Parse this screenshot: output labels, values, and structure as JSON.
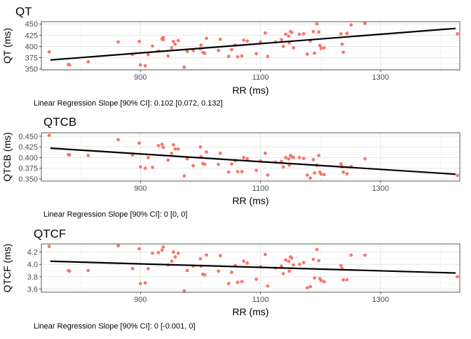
{
  "chart_data": [
    {
      "type": "scatter",
      "title": "QT",
      "xlabel": "RR (ms)",
      "ylabel": "QT (ms)",
      "xlim": [
        735,
        1432
      ],
      "ylim": [
        348,
        455
      ],
      "xticks": [
        900,
        1100,
        1300
      ],
      "yticks": [
        350,
        375,
        400,
        425,
        450
      ],
      "ytick_labels": [
        "350",
        "375",
        "400",
        "425",
        "450"
      ],
      "grid": true,
      "point_color": "#F8766D",
      "line_color": "#000000",
      "caption": "Linear Regression Slope [90% CI]: 0.102 [0.072, 0.132]",
      "regression": {
        "x": [
          750,
          1425
        ],
        "y": [
          370,
          440
        ]
      },
      "points": [
        {
          "x": 748,
          "y": 388
        },
        {
          "x": 780,
          "y": 360
        },
        {
          "x": 782,
          "y": 359
        },
        {
          "x": 813,
          "y": 366
        },
        {
          "x": 863,
          "y": 410
        },
        {
          "x": 887,
          "y": 382
        },
        {
          "x": 898,
          "y": 411
        },
        {
          "x": 900,
          "y": 359
        },
        {
          "x": 908,
          "y": 357
        },
        {
          "x": 913,
          "y": 382
        },
        {
          "x": 920,
          "y": 401
        },
        {
          "x": 930,
          "y": 390
        },
        {
          "x": 936,
          "y": 417
        },
        {
          "x": 938,
          "y": 415
        },
        {
          "x": 938,
          "y": 420
        },
        {
          "x": 946,
          "y": 379
        },
        {
          "x": 952,
          "y": 397
        },
        {
          "x": 955,
          "y": 411
        },
        {
          "x": 958,
          "y": 405
        },
        {
          "x": 963,
          "y": 413
        },
        {
          "x": 973,
          "y": 354
        },
        {
          "x": 978,
          "y": 389
        },
        {
          "x": 988,
          "y": 391
        },
        {
          "x": 1000,
          "y": 395
        },
        {
          "x": 1001,
          "y": 403
        },
        {
          "x": 1004,
          "y": 387
        },
        {
          "x": 1007,
          "y": 385
        },
        {
          "x": 1010,
          "y": 418
        },
        {
          "x": 1030,
          "y": 391
        },
        {
          "x": 1033,
          "y": 416
        },
        {
          "x": 1047,
          "y": 378
        },
        {
          "x": 1052,
          "y": 393
        },
        {
          "x": 1058,
          "y": 403
        },
        {
          "x": 1062,
          "y": 377
        },
        {
          "x": 1069,
          "y": 379
        },
        {
          "x": 1072,
          "y": 414
        },
        {
          "x": 1078,
          "y": 412
        },
        {
          "x": 1093,
          "y": 384
        },
        {
          "x": 1100,
          "y": 410
        },
        {
          "x": 1108,
          "y": 430
        },
        {
          "x": 1112,
          "y": 378
        },
        {
          "x": 1125,
          "y": 410
        },
        {
          "x": 1135,
          "y": 415
        },
        {
          "x": 1138,
          "y": 400
        },
        {
          "x": 1142,
          "y": 427
        },
        {
          "x": 1147,
          "y": 423
        },
        {
          "x": 1148,
          "y": 408
        },
        {
          "x": 1150,
          "y": 433
        },
        {
          "x": 1152,
          "y": 431
        },
        {
          "x": 1155,
          "y": 397
        },
        {
          "x": 1165,
          "y": 427
        },
        {
          "x": 1172,
          "y": 428
        },
        {
          "x": 1178,
          "y": 383
        },
        {
          "x": 1183,
          "y": 412
        },
        {
          "x": 1188,
          "y": 433
        },
        {
          "x": 1190,
          "y": 385
        },
        {
          "x": 1194,
          "y": 450
        },
        {
          "x": 1197,
          "y": 432
        },
        {
          "x": 1199,
          "y": 402
        },
        {
          "x": 1201,
          "y": 396
        },
        {
          "x": 1206,
          "y": 397
        },
        {
          "x": 1234,
          "y": 428
        },
        {
          "x": 1236,
          "y": 405
        },
        {
          "x": 1238,
          "y": 387
        },
        {
          "x": 1244,
          "y": 429
        },
        {
          "x": 1251,
          "y": 448
        },
        {
          "x": 1274,
          "y": 451
        },
        {
          "x": 1428,
          "y": 428
        }
      ]
    },
    {
      "type": "scatter",
      "title": "QTCB",
      "xlabel": "RR (ms)",
      "ylabel": "QTCB (ms)",
      "xlim": [
        735,
        1432
      ],
      "ylim": [
        0.345,
        0.458
      ],
      "xticks": [
        900,
        1100,
        1300
      ],
      "yticks": [
        0.35,
        0.375,
        0.4,
        0.425,
        0.45
      ],
      "ytick_labels": [
        "0.350",
        "0.375",
        "0.400",
        "0.425",
        "0.450"
      ],
      "grid": true,
      "point_color": "#F8766D",
      "line_color": "#000000",
      "caption": "Linear Regression Slope [90% CI]: 0 [0, 0]",
      "regression": {
        "x": [
          750,
          1425
        ],
        "y": [
          0.422,
          0.361
        ]
      },
      "points": [
        {
          "x": 748,
          "y": 0.452
        },
        {
          "x": 780,
          "y": 0.407
        },
        {
          "x": 782,
          "y": 0.406
        },
        {
          "x": 813,
          "y": 0.405
        },
        {
          "x": 863,
          "y": 0.442
        },
        {
          "x": 887,
          "y": 0.406
        },
        {
          "x": 898,
          "y": 0.434
        },
        {
          "x": 900,
          "y": 0.378
        },
        {
          "x": 908,
          "y": 0.375
        },
        {
          "x": 913,
          "y": 0.4
        },
        {
          "x": 920,
          "y": 0.377
        },
        {
          "x": 930,
          "y": 0.428
        },
        {
          "x": 936,
          "y": 0.431
        },
        {
          "x": 938,
          "y": 0.424
        },
        {
          "x": 946,
          "y": 0.394
        },
        {
          "x": 952,
          "y": 0.41
        },
        {
          "x": 955,
          "y": 0.43
        },
        {
          "x": 958,
          "y": 0.42
        },
        {
          "x": 963,
          "y": 0.42
        },
        {
          "x": 978,
          "y": 0.397
        },
        {
          "x": 973,
          "y": 0.357
        },
        {
          "x": 988,
          "y": 0.381
        },
        {
          "x": 1000,
          "y": 0.425
        },
        {
          "x": 1001,
          "y": 0.402
        },
        {
          "x": 1004,
          "y": 0.386
        },
        {
          "x": 1007,
          "y": 0.384
        },
        {
          "x": 1010,
          "y": 0.413
        },
        {
          "x": 1030,
          "y": 0.384
        },
        {
          "x": 1033,
          "y": 0.41
        },
        {
          "x": 1047,
          "y": 0.366
        },
        {
          "x": 1052,
          "y": 0.385
        },
        {
          "x": 1058,
          "y": 0.393
        },
        {
          "x": 1062,
          "y": 0.367
        },
        {
          "x": 1069,
          "y": 0.367
        },
        {
          "x": 1072,
          "y": 0.4
        },
        {
          "x": 1078,
          "y": 0.397
        },
        {
          "x": 1093,
          "y": 0.37
        },
        {
          "x": 1100,
          "y": 0.392
        },
        {
          "x": 1108,
          "y": 0.41
        },
        {
          "x": 1112,
          "y": 0.359
        },
        {
          "x": 1125,
          "y": 0.389
        },
        {
          "x": 1135,
          "y": 0.391
        },
        {
          "x": 1138,
          "y": 0.378
        },
        {
          "x": 1142,
          "y": 0.4
        },
        {
          "x": 1147,
          "y": 0.397
        },
        {
          "x": 1148,
          "y": 0.382
        },
        {
          "x": 1150,
          "y": 0.405
        },
        {
          "x": 1152,
          "y": 0.402
        },
        {
          "x": 1155,
          "y": 0.4
        },
        {
          "x": 1165,
          "y": 0.4
        },
        {
          "x": 1172,
          "y": 0.398
        },
        {
          "x": 1178,
          "y": 0.359
        },
        {
          "x": 1183,
          "y": 0.352
        },
        {
          "x": 1188,
          "y": 0.395
        },
        {
          "x": 1190,
          "y": 0.364
        },
        {
          "x": 1194,
          "y": 0.382
        },
        {
          "x": 1197,
          "y": 0.405
        },
        {
          "x": 1199,
          "y": 0.366
        },
        {
          "x": 1201,
          "y": 0.361
        },
        {
          "x": 1206,
          "y": 0.36
        },
        {
          "x": 1234,
          "y": 0.385
        },
        {
          "x": 1236,
          "y": 0.378
        },
        {
          "x": 1238,
          "y": 0.366
        },
        {
          "x": 1244,
          "y": 0.362
        },
        {
          "x": 1251,
          "y": 0.379
        },
        {
          "x": 1274,
          "y": 0.397
        },
        {
          "x": 1428,
          "y": 0.358
        }
      ]
    },
    {
      "type": "scatter",
      "title": "QTCF",
      "xlabel": "RR (ms)",
      "ylabel": "QTCF (ms)",
      "xlim": [
        735,
        1432
      ],
      "ylim": [
        3.55,
        4.33
      ],
      "xticks": [
        900,
        1100,
        1300
      ],
      "yticks": [
        3.6,
        3.8,
        4.0,
        4.2
      ],
      "ytick_labels": [
        "3.6",
        "3.8",
        "4.0",
        "4.2"
      ],
      "grid": true,
      "point_color": "#F8766D",
      "line_color": "#000000",
      "caption": "Linear Regression Slope [90% CI]: 0 [-0.001, 0]",
      "regression": {
        "x": [
          750,
          1425
        ],
        "y": [
          4.05,
          3.86
        ]
      },
      "points": [
        {
          "x": 748,
          "y": 4.29
        },
        {
          "x": 780,
          "y": 3.9
        },
        {
          "x": 782,
          "y": 3.89
        },
        {
          "x": 813,
          "y": 3.9
        },
        {
          "x": 863,
          "y": 4.3
        },
        {
          "x": 887,
          "y": 3.93
        },
        {
          "x": 898,
          "y": 4.25
        },
        {
          "x": 900,
          "y": 3.69
        },
        {
          "x": 908,
          "y": 3.7
        },
        {
          "x": 913,
          "y": 3.93
        },
        {
          "x": 920,
          "y": 4.18
        },
        {
          "x": 930,
          "y": 4.19
        },
        {
          "x": 936,
          "y": 4.23
        },
        {
          "x": 938,
          "y": 4.28
        },
        {
          "x": 946,
          "y": 3.99
        },
        {
          "x": 952,
          "y": 4.05
        },
        {
          "x": 955,
          "y": 4.2
        },
        {
          "x": 958,
          "y": 4.12
        },
        {
          "x": 963,
          "y": 4.18
        },
        {
          "x": 973,
          "y": 3.57
        },
        {
          "x": 978,
          "y": 3.9
        },
        {
          "x": 988,
          "y": 3.97
        },
        {
          "x": 1000,
          "y": 4.09
        },
        {
          "x": 1001,
          "y": 3.97
        },
        {
          "x": 1004,
          "y": 3.84
        },
        {
          "x": 1007,
          "y": 3.83
        },
        {
          "x": 1010,
          "y": 4.15
        },
        {
          "x": 1030,
          "y": 3.89
        },
        {
          "x": 1033,
          "y": 4.14
        },
        {
          "x": 1047,
          "y": 3.69
        },
        {
          "x": 1052,
          "y": 3.87
        },
        {
          "x": 1058,
          "y": 3.98
        },
        {
          "x": 1062,
          "y": 3.71
        },
        {
          "x": 1069,
          "y": 3.72
        },
        {
          "x": 1072,
          "y": 4.05
        },
        {
          "x": 1078,
          "y": 4.02
        },
        {
          "x": 1093,
          "y": 3.76
        },
        {
          "x": 1100,
          "y": 3.96
        },
        {
          "x": 1108,
          "y": 4.16
        },
        {
          "x": 1112,
          "y": 3.65
        },
        {
          "x": 1125,
          "y": 3.94
        },
        {
          "x": 1135,
          "y": 3.97
        },
        {
          "x": 1138,
          "y": 3.85
        },
        {
          "x": 1142,
          "y": 4.07
        },
        {
          "x": 1147,
          "y": 4.05
        },
        {
          "x": 1148,
          "y": 3.89
        },
        {
          "x": 1150,
          "y": 4.12
        },
        {
          "x": 1152,
          "y": 4.1
        },
        {
          "x": 1155,
          "y": 3.99
        },
        {
          "x": 1165,
          "y": 4.0
        },
        {
          "x": 1172,
          "y": 4.03
        },
        {
          "x": 1178,
          "y": 3.62
        },
        {
          "x": 1183,
          "y": 3.64
        },
        {
          "x": 1188,
          "y": 4.08
        },
        {
          "x": 1190,
          "y": 3.78
        },
        {
          "x": 1194,
          "y": 4.24
        },
        {
          "x": 1197,
          "y": 4.06
        },
        {
          "x": 1199,
          "y": 3.77
        },
        {
          "x": 1201,
          "y": 3.74
        },
        {
          "x": 1206,
          "y": 3.72
        },
        {
          "x": 1234,
          "y": 3.98
        },
        {
          "x": 1236,
          "y": 3.93
        },
        {
          "x": 1238,
          "y": 3.75
        },
        {
          "x": 1244,
          "y": 3.75
        },
        {
          "x": 1251,
          "y": 4.15
        },
        {
          "x": 1274,
          "y": 4.15
        },
        {
          "x": 1428,
          "y": 3.8
        }
      ]
    }
  ]
}
